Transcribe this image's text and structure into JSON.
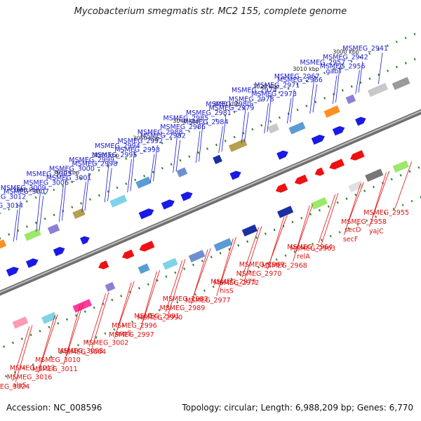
{
  "title": "Mycobacterium smegmatis str. MC2 155, complete genome",
  "footer": {
    "accession": "Accession: NC_008596",
    "info": "Topology: circular; Length: 6,988,209 bp; Genes: 6,770"
  },
  "scale": {
    "ticks": [
      "3000 kbp",
      "3010 kbp",
      "3020 kbp",
      "3030 kbp",
      "3040 kbp",
      "3050 kbp",
      "3060 kbp",
      "3070 kbp",
      "3080 kbp",
      "3090 kbp"
    ]
  },
  "genes_top": [
    "MSMEG_2941",
    "MSMEG_2942",
    "MSMEG_2956",
    "MSMEG_2957",
    "gabT",
    "MSMEG_2966",
    "MSMEG_2967",
    "MSMEG_2971",
    "MSMEG_2973",
    "MSMEG_2974",
    "MSMEG_2978",
    "MSMEG_2979",
    "MSMEG_2980",
    "MSMEG_2981",
    "MSMEG_2984",
    "MSMEG_2985",
    "MSMEG_2986",
    "MSMEG_2982",
    "MSMEG_2988",
    "MSMEG_2992",
    "MSMEG_2993",
    "MSMEG_2994",
    "MSMEG_2995",
    "MSMEG_2998",
    "MSMEG_2999",
    "MSMEG_3000",
    "MSMEG_3001",
    "MSMEG_3005",
    "MSMEG_3006",
    "MSMEG_3007",
    "MSMEG_3009",
    "MSMEG_3012",
    "MSMEG_3014"
  ],
  "genes_bottom": [
    "MSMEG_2955",
    "MSMEG_2958",
    "yajC",
    "secD",
    "secF",
    "MSMEG_2963",
    "MSMEG_2964",
    "relA",
    "MSMEG_2968",
    "MSMEG_2969",
    "MSMEG_2970",
    "MSMEG_2972",
    "MSMEG_2975",
    "hisS",
    "MSMEG_2977",
    "MSMEG_2983",
    "MSMEG_2989",
    "MSMEG_2990",
    "MSMEG_2991",
    "MSMEG_2996",
    "MSMEG_2997",
    "aspS",
    "MSMEG_3002",
    "MSMEG_3004",
    "MSMEG_3008",
    "MSMEG_3010",
    "MSMEG_3011",
    "MSMEG_3013",
    "MSMEG_3016",
    "MSMEG_3024",
    "alaS"
  ]
}
